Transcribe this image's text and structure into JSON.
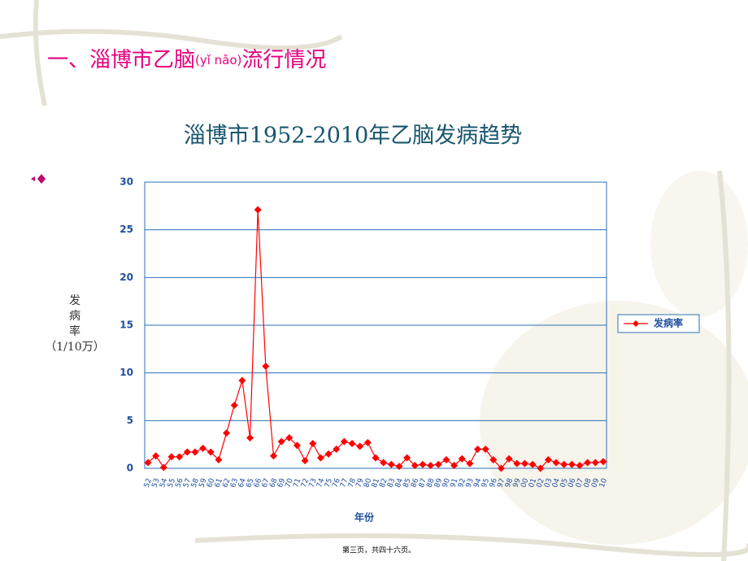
{
  "slide_title": {
    "main": "一、淄博市乙脑",
    "pinyin": "(yǐ nǎo)",
    "rest": "流行情况"
  },
  "chart_data": {
    "type": "line",
    "title": "淄博市1952-2010年乙脑发病趋势",
    "ylabel": [
      "发",
      "病",
      "率",
      "（1/10万）"
    ],
    "xlabel": "年份",
    "categories": [
      "52",
      "53",
      "54",
      "55",
      "56",
      "57",
      "58",
      "59",
      "60",
      "61",
      "62",
      "63",
      "64",
      "65",
      "66",
      "67",
      "68",
      "69",
      "70",
      "71",
      "72",
      "73",
      "74",
      "75",
      "76",
      "77",
      "78",
      "79",
      "80",
      "81",
      "82",
      "83",
      "84",
      "85",
      "86",
      "87",
      "88",
      "89",
      "90",
      "91",
      "92",
      "93",
      "94",
      "95",
      "96",
      "97",
      "98",
      "99",
      "00",
      "01",
      "02",
      "03",
      "04",
      "05",
      "06",
      "07",
      "08",
      "09",
      "10"
    ],
    "series": [
      {
        "name": "发病率",
        "color": "#ff0000",
        "values": [
          0.6,
          1.3,
          0.1,
          1.2,
          1.2,
          1.7,
          1.7,
          2.1,
          1.7,
          0.9,
          3.7,
          6.6,
          9.2,
          3.2,
          27.1,
          10.7,
          1.3,
          2.8,
          3.2,
          2.4,
          0.8,
          2.6,
          1.1,
          1.5,
          2.0,
          2.8,
          2.6,
          2.3,
          2.7,
          1.1,
          0.6,
          0.4,
          0.2,
          1.1,
          0.3,
          0.4,
          0.3,
          0.4,
          0.9,
          0.3,
          1.0,
          0.5,
          2.0,
          2.0,
          0.9,
          0.0,
          1.0,
          0.5,
          0.5,
          0.4,
          0.0,
          0.9,
          0.6,
          0.4,
          0.4,
          0.3,
          0.6,
          0.6,
          0.7
        ]
      }
    ],
    "ylim": [
      0,
      30
    ],
    "yticks": [
      0,
      5,
      10,
      15,
      20,
      25,
      30
    ],
    "grid": true,
    "legend": "right"
  },
  "footer": "第三页，共四十六页。"
}
